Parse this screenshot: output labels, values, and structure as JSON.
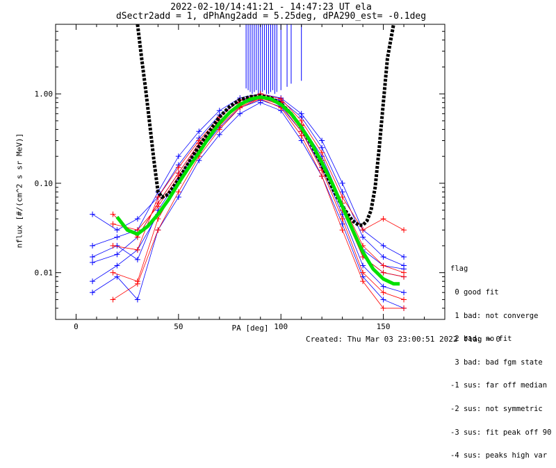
{
  "title_line1": "2022-02-10/14:41:21 - 14:47:23 UT ela",
  "title_line2": "dSectr2add = 1, dPhAng2add = 5.25deg, dPA290_est=  -0.1deg",
  "xlabel": "PA [deg]",
  "ylabel": "nflux [#/(cm^2 s sr MeV)]",
  "legend": {
    "title": "flag",
    "items": [
      " 0 good fit",
      " 1 bad: not converge",
      " 2 bad: no fit",
      " 3 bad: bad fgm state",
      "-1 sus: far off median",
      "-2 sus: not symmetric",
      "-3 sus: fit peak off 90",
      "-4 sus: peaks high var"
    ]
  },
  "footer": {
    "created": "Created: Thu Mar 03 23:00:51 2022",
    "flag": "flag = 0"
  },
  "colors": {
    "blue": "#0000ff",
    "red": "#ff0000",
    "fit_green": "#00e000",
    "model_black": "#000000"
  },
  "chart_data": {
    "type": "line",
    "xlim": [
      -10,
      180
    ],
    "ylim": [
      0.003,
      6
    ],
    "yscale": "log",
    "x_ticks": [
      0,
      50,
      100,
      150
    ],
    "y_ticks": [
      {
        "value": 0.01,
        "label": "0.01"
      },
      {
        "value": 0.1,
        "label": "0.10"
      },
      {
        "value": 1.0,
        "label": "1.00"
      }
    ],
    "grid": false,
    "series": [
      {
        "color": "blue",
        "x": [
          8,
          20,
          30,
          40,
          50,
          60,
          70,
          80,
          90,
          100,
          110,
          120,
          130,
          140,
          150,
          160
        ],
        "y": [
          0.013,
          0.016,
          0.025,
          0.06,
          0.13,
          0.28,
          0.5,
          0.8,
          0.92,
          0.8,
          0.45,
          0.2,
          0.06,
          0.018,
          0.012,
          0.011
        ]
      },
      {
        "color": "blue",
        "x": [
          8,
          20,
          30,
          40,
          50,
          60,
          70,
          80,
          90,
          100,
          110,
          120,
          130,
          140,
          150,
          160
        ],
        "y": [
          0.045,
          0.03,
          0.04,
          0.07,
          0.16,
          0.32,
          0.58,
          0.85,
          0.95,
          0.85,
          0.55,
          0.25,
          0.08,
          0.025,
          0.015,
          0.012
        ]
      },
      {
        "color": "blue",
        "x": [
          8,
          20,
          30,
          40,
          50,
          60,
          70,
          80,
          90,
          100,
          110,
          120,
          130,
          140,
          150,
          160
        ],
        "y": [
          0.008,
          0.012,
          0.018,
          0.045,
          0.1,
          0.22,
          0.42,
          0.7,
          0.85,
          0.72,
          0.38,
          0.15,
          0.045,
          0.012,
          0.007,
          0.006
        ]
      },
      {
        "color": "blue",
        "x": [
          8,
          20,
          30,
          40,
          50,
          60,
          70,
          80,
          90,
          100,
          110,
          120,
          130,
          140,
          150,
          160
        ],
        "y": [
          0.02,
          0.025,
          0.03,
          0.08,
          0.2,
          0.38,
          0.65,
          0.9,
          1.0,
          0.9,
          0.6,
          0.3,
          0.1,
          0.03,
          0.02,
          0.015
        ]
      },
      {
        "color": "blue",
        "x": [
          8,
          20,
          30,
          40,
          50,
          60,
          70,
          80,
          90,
          100,
          110,
          120,
          130,
          140,
          150,
          160
        ],
        "y": [
          0.006,
          0.009,
          0.005,
          0.03,
          0.07,
          0.18,
          0.35,
          0.6,
          0.8,
          0.65,
          0.3,
          0.12,
          0.035,
          0.009,
          0.005,
          0.004
        ]
      },
      {
        "color": "blue",
        "x": [
          8,
          20,
          30,
          40,
          50,
          60,
          70,
          80,
          90,
          100,
          110,
          120,
          130,
          140,
          150,
          160
        ],
        "y": [
          0.015,
          0.02,
          0.014,
          0.05,
          0.11,
          0.26,
          0.48,
          0.75,
          0.9,
          0.78,
          0.42,
          0.18,
          0.055,
          0.015,
          0.01,
          0.009
        ]
      },
      {
        "color": "red",
        "x": [
          18,
          30,
          40,
          50,
          60,
          70,
          80,
          90,
          100,
          110,
          120,
          130,
          140,
          150,
          160
        ],
        "y": [
          0.035,
          0.03,
          0.055,
          0.12,
          0.26,
          0.48,
          0.78,
          0.95,
          0.82,
          0.45,
          0.18,
          0.05,
          0.015,
          0.01,
          0.009
        ]
      },
      {
        "color": "red",
        "x": [
          18,
          30,
          40,
          50,
          60,
          70,
          80,
          90,
          100,
          110,
          120,
          130,
          140,
          150,
          160
        ],
        "y": [
          0.01,
          0.008,
          0.04,
          0.1,
          0.22,
          0.44,
          0.72,
          0.9,
          0.75,
          0.38,
          0.14,
          0.04,
          0.01,
          0.006,
          0.005
        ]
      },
      {
        "color": "red",
        "x": [
          18,
          30,
          40,
          50,
          60,
          70,
          80,
          90,
          100,
          110,
          120,
          130,
          140,
          150,
          160
        ],
        "y": [
          0.02,
          0.018,
          0.07,
          0.15,
          0.3,
          0.55,
          0.85,
          1.0,
          0.88,
          0.5,
          0.22,
          0.07,
          0.03,
          0.04,
          0.03
        ]
      },
      {
        "color": "red",
        "x": [
          18,
          30,
          40,
          50,
          60,
          70,
          80,
          90,
          100,
          110,
          120,
          130,
          140,
          150,
          160
        ],
        "y": [
          0.005,
          0.0075,
          0.03,
          0.08,
          0.2,
          0.4,
          0.7,
          0.88,
          0.7,
          0.34,
          0.12,
          0.03,
          0.008,
          0.004,
          0.004
        ]
      },
      {
        "color": "red",
        "x": [
          18,
          30,
          40,
          50,
          60,
          70,
          80,
          90,
          100,
          110,
          120,
          130,
          140,
          150,
          160
        ],
        "y": [
          0.045,
          0.025,
          0.06,
          0.13,
          0.28,
          0.5,
          0.8,
          0.93,
          0.8,
          0.44,
          0.17,
          0.06,
          0.02,
          0.012,
          0.01
        ]
      }
    ],
    "fit_curve": {
      "color": "fit_green",
      "x": [
        20,
        25,
        30,
        35,
        40,
        45,
        50,
        55,
        60,
        65,
        70,
        75,
        80,
        85,
        90,
        95,
        100,
        105,
        110,
        115,
        120,
        125,
        130,
        135,
        140,
        145,
        150,
        155,
        158
      ],
      "y": [
        0.042,
        0.03,
        0.027,
        0.033,
        0.045,
        0.065,
        0.1,
        0.15,
        0.22,
        0.33,
        0.47,
        0.62,
        0.76,
        0.87,
        0.92,
        0.88,
        0.76,
        0.6,
        0.42,
        0.28,
        0.17,
        0.1,
        0.055,
        0.03,
        0.017,
        0.011,
        0.0085,
        0.0075,
        0.0075
      ]
    },
    "model_curve": {
      "color": "model_black",
      "x": [
        30,
        32,
        34,
        36,
        38,
        40,
        42,
        45,
        50,
        55,
        60,
        65,
        70,
        75,
        80,
        85,
        90,
        95,
        100,
        105,
        110,
        115,
        120,
        125,
        130,
        135,
        138,
        140,
        142,
        144,
        146,
        148,
        150,
        152,
        155
      ],
      "y": [
        6,
        2.5,
        1.1,
        0.45,
        0.18,
        0.08,
        0.07,
        0.075,
        0.11,
        0.17,
        0.26,
        0.38,
        0.55,
        0.72,
        0.86,
        0.93,
        0.95,
        0.9,
        0.78,
        0.6,
        0.42,
        0.27,
        0.16,
        0.09,
        0.055,
        0.038,
        0.034,
        0.034,
        0.038,
        0.05,
        0.09,
        0.25,
        0.8,
        2.5,
        6
      ]
    },
    "spikes": {
      "color": "blue",
      "x": [
        83,
        84,
        85,
        86,
        87,
        88,
        89,
        90,
        91,
        92,
        93,
        94,
        95,
        96,
        97,
        98,
        100,
        103,
        105,
        110
      ],
      "y_bottom": [
        1.15,
        1.1,
        1.05,
        1.0,
        1.05,
        1.1,
        1.0,
        1.0,
        1.05,
        1.1,
        1.0,
        1.0,
        1.05,
        1.1,
        1.0,
        1.05,
        1.1,
        1.2,
        1.3,
        1.4
      ]
    }
  }
}
